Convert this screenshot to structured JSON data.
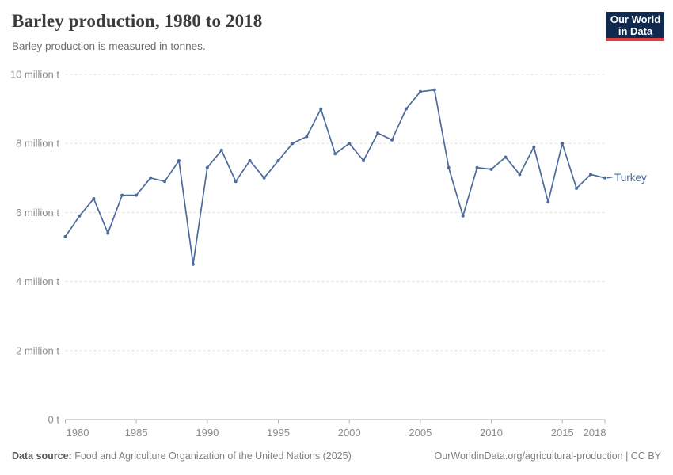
{
  "header": {
    "title": "Barley production, 1980 to 2018",
    "subtitle": "Barley production is measured in tonnes.",
    "logo": {
      "line1": "Our World",
      "line2": "in Data"
    }
  },
  "chart_data": {
    "type": "line",
    "title": "Barley production, 1980 to 2018",
    "subtitle": "Barley production is measured in tonnes.",
    "unit": "tonnes",
    "x": [
      1980,
      1981,
      1982,
      1983,
      1984,
      1985,
      1986,
      1987,
      1988,
      1989,
      1990,
      1991,
      1992,
      1993,
      1994,
      1995,
      1996,
      1997,
      1998,
      1999,
      2000,
      2001,
      2002,
      2003,
      2004,
      2005,
      2006,
      2007,
      2008,
      2009,
      2010,
      2011,
      2012,
      2013,
      2014,
      2015,
      2016,
      2017,
      2018
    ],
    "series": [
      {
        "name": "Turkey",
        "color": "#4C6A9C",
        "values": [
          5300000,
          5900000,
          6400000,
          5400000,
          6500000,
          6500000,
          7000000,
          6900000,
          7500000,
          4500000,
          7300000,
          7800000,
          6900000,
          7500000,
          7000000,
          7500000,
          8000000,
          8200000,
          9000000,
          7700000,
          8000000,
          7500000,
          8300000,
          8100000,
          9000000,
          9500000,
          9550000,
          7300000,
          5900000,
          7300000,
          7250000,
          7600000,
          7100000,
          7900000,
          6300000,
          8000000,
          6700000,
          7100000,
          7000000
        ]
      }
    ],
    "ylim": [
      0,
      10000000
    ],
    "y_ticks": [
      {
        "value": 0,
        "label": "0 t"
      },
      {
        "value": 2000000,
        "label": "2 million t"
      },
      {
        "value": 4000000,
        "label": "4 million t"
      },
      {
        "value": 6000000,
        "label": "6 million t"
      },
      {
        "value": 8000000,
        "label": "8 million t"
      },
      {
        "value": 10000000,
        "label": "10 million t"
      }
    ],
    "x_ticks": [
      1980,
      1985,
      1990,
      1995,
      2000,
      2005,
      2010,
      2015,
      2018
    ],
    "grid": "horizontal-dashed",
    "legend_position": "end-of-line-label"
  },
  "footer": {
    "source_label": "Data source:",
    "source_text": "Food and Agriculture Organization of the United Nations (2025)",
    "link_text": "OurWorldinData.org/agricultural-production | CC BY"
  },
  "colors": {
    "line": "#4C6A9C",
    "grid": "#dddddd",
    "axis": "#b0b0b0",
    "tick_text": "#8b8b8b",
    "logo_bg": "#10294E",
    "logo_accent": "#E23B41"
  }
}
